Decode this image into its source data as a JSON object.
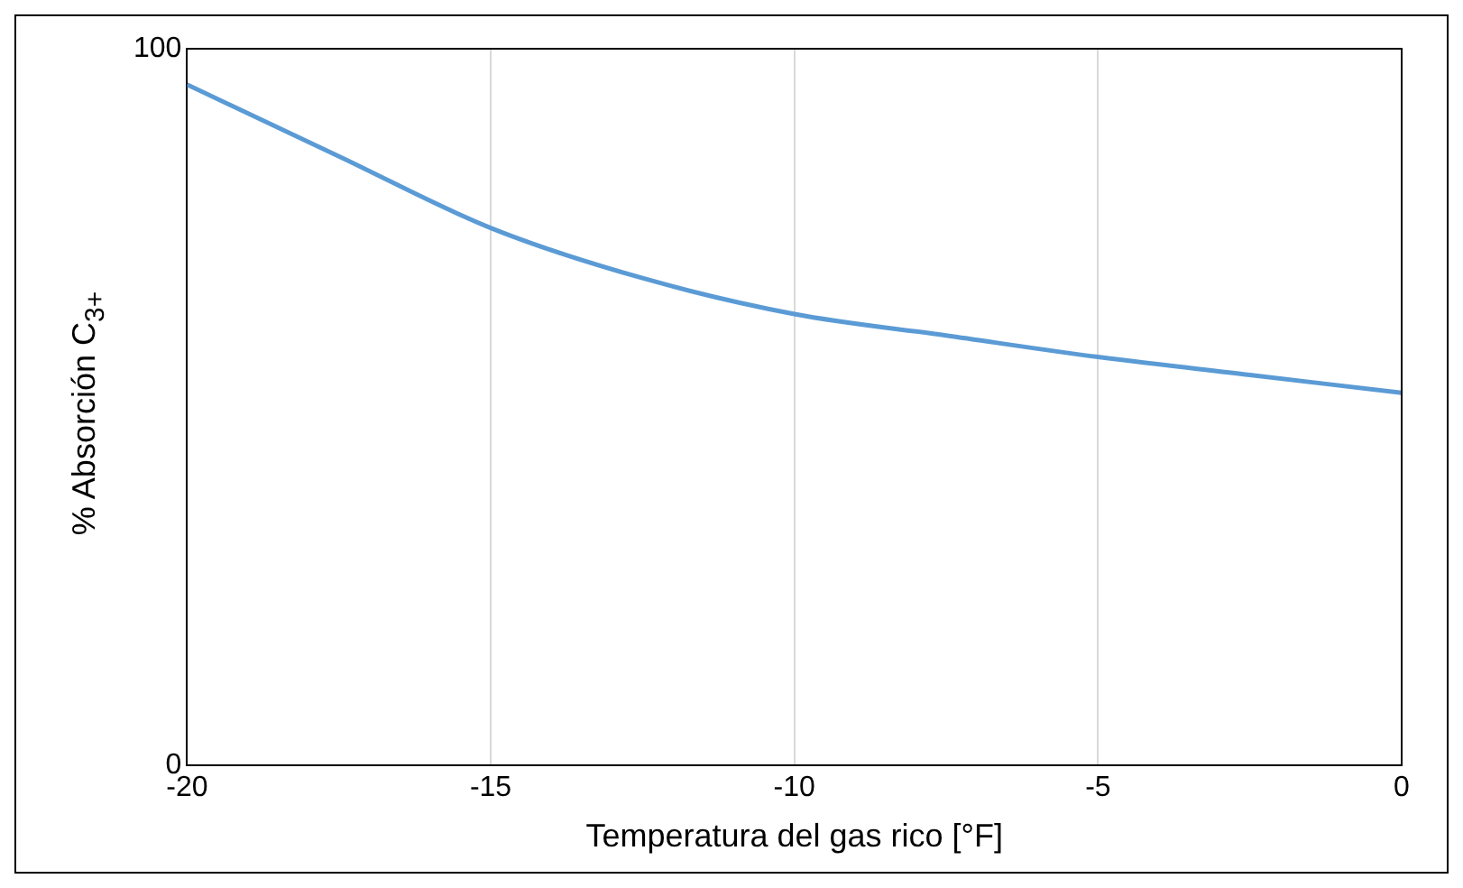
{
  "chart_data": {
    "type": "line",
    "xlabel": "Temperatura del gas rico [°F]",
    "ylabel": "% Absorción C$_{3+}$",
    "x": [
      -20,
      -17.5,
      -15,
      -12.5,
      -10,
      -7.5,
      -5,
      -2.5,
      0
    ],
    "series": [
      {
        "color": "#5b9bd5",
        "values": [
          95,
          85,
          75,
          68,
          63,
          60,
          57,
          54.5,
          52
        ]
      }
    ],
    "xlim": [
      -20,
      0
    ],
    "xticks": [
      -20,
      -15,
      -10,
      -5,
      0
    ],
    "ylim": [
      0,
      100
    ],
    "yticks": [
      0,
      100
    ],
    "grid": "x",
    "legend": false,
    "marker": "none",
    "line_style": "solid"
  }
}
